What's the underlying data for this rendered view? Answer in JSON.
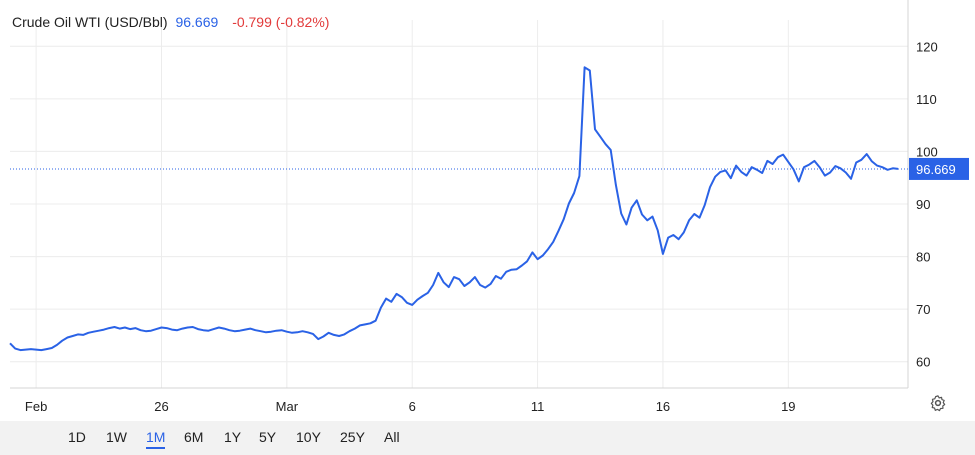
{
  "legend": {
    "symbol": "Crude Oil WTI (USD/Bbl)",
    "price": "96.669",
    "change": "-0.799 (-0.82%)"
  },
  "range_buttons": [
    "1D",
    "1W",
    "1M",
    "6M",
    "1Y",
    "5Y",
    "10Y",
    "25Y",
    "All"
  ],
  "active_range": "1M",
  "colors": {
    "line": "#2a62e6",
    "change_negative": "#e23b3b",
    "price_label_bg": "#2a62e6",
    "grid": "#ececec"
  },
  "chart_data": {
    "type": "line",
    "title": "",
    "xlabel": "",
    "ylabel": "",
    "ylim": [
      55,
      125
    ],
    "y_ticks": [
      60,
      70,
      80,
      90,
      100,
      110,
      120
    ],
    "x_tick_labels": [
      "Feb",
      "26",
      "Mar",
      "6",
      "11",
      "16",
      "19"
    ],
    "x_tick_positions": [
      5,
      29,
      53,
      77,
      101,
      125,
      149
    ],
    "last_price": 96.669,
    "series": [
      {
        "values": [
          63.5,
          62.5,
          62.2,
          62.3,
          62.4,
          62.3,
          62.2,
          62.4,
          62.6,
          63.2,
          64.0,
          64.6,
          64.9,
          65.2,
          65.1,
          65.5,
          65.7,
          65.9,
          66.1,
          66.4,
          66.6,
          66.3,
          66.5,
          66.2,
          66.4,
          66.0,
          65.8,
          65.9,
          66.2,
          66.5,
          66.4,
          66.1,
          66.0,
          66.3,
          66.5,
          66.6,
          66.2,
          66.0,
          65.9,
          66.2,
          66.5,
          66.3,
          66.0,
          65.8,
          65.9,
          66.1,
          66.3,
          66.0,
          65.8,
          65.6,
          65.7,
          65.9,
          66.0,
          65.7,
          65.5,
          65.6,
          65.8,
          65.6,
          65.3,
          64.3,
          64.8,
          65.5,
          65.1,
          64.9,
          65.2,
          65.8,
          66.3,
          66.9,
          67.1,
          67.3,
          67.8,
          70.3,
          72.0,
          71.4,
          72.9,
          72.3,
          71.2,
          70.8,
          71.8,
          72.5,
          73.1,
          74.6,
          76.9,
          75.1,
          74.2,
          76.1,
          75.7,
          74.4,
          75.1,
          76.1,
          74.6,
          74.1,
          74.8,
          76.3,
          75.8,
          77.1,
          77.5,
          77.6,
          78.3,
          79.1,
          80.8,
          79.5,
          80.2,
          81.4,
          82.8,
          84.9,
          87.1,
          90.1,
          92.1,
          95.3,
          116.0,
          115.4,
          104.2,
          102.8,
          101.4,
          100.3,
          93.6,
          88.2,
          86.1,
          89.3,
          90.7,
          88.0,
          86.9,
          87.6,
          85.0,
          80.5,
          83.6,
          84.1,
          83.3,
          84.6,
          86.9,
          88.1,
          87.4,
          89.8,
          93.2,
          95.2,
          96.1,
          96.4,
          94.9,
          97.3,
          96.1,
          95.4,
          97.0,
          96.5,
          95.9,
          98.2,
          97.6,
          98.9,
          99.4,
          98.0,
          96.6,
          94.3,
          97.0,
          97.5,
          98.2,
          97.0,
          95.4,
          96.0,
          97.2,
          96.8,
          96.0,
          94.8,
          97.9,
          98.4,
          99.5,
          98.1,
          97.3,
          97.0,
          96.5,
          96.8,
          96.669
        ]
      }
    ]
  }
}
